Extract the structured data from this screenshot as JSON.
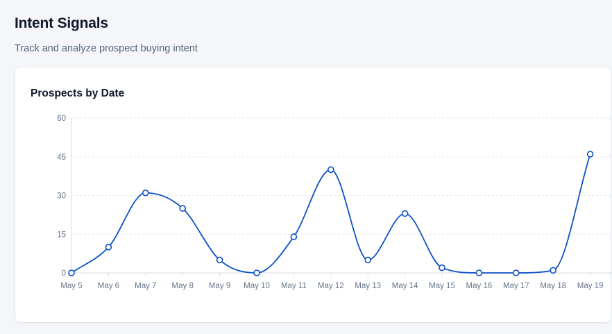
{
  "header": {
    "title": "Intent Signals",
    "subtitle": "Track and analyze prospect buying intent"
  },
  "card": {
    "title": "Prospects by Date"
  },
  "colors": {
    "line": "#0b4fc8",
    "grid": "#e2e8f0",
    "axis": "#d6dce4",
    "tick_text": "#64748b",
    "point_fill": "#ffffff"
  },
  "chart_data": {
    "type": "line",
    "title": "",
    "xlabel": "",
    "ylabel": "",
    "ylim": [
      0,
      60
    ],
    "yticks": [
      0,
      15,
      30,
      45,
      60
    ],
    "grid": true,
    "curve": "smooth",
    "categories": [
      "May 5",
      "May 6",
      "May 7",
      "May 8",
      "May 9",
      "May 10",
      "May 11",
      "May 12",
      "May 13",
      "May 14",
      "May 15",
      "May 16",
      "May 17",
      "May 18",
      "May 19"
    ],
    "series": [
      {
        "values": [
          0,
          10,
          31,
          25,
          5,
          0,
          14,
          40,
          5,
          23,
          2,
          0,
          0,
          1,
          46
        ]
      }
    ]
  }
}
